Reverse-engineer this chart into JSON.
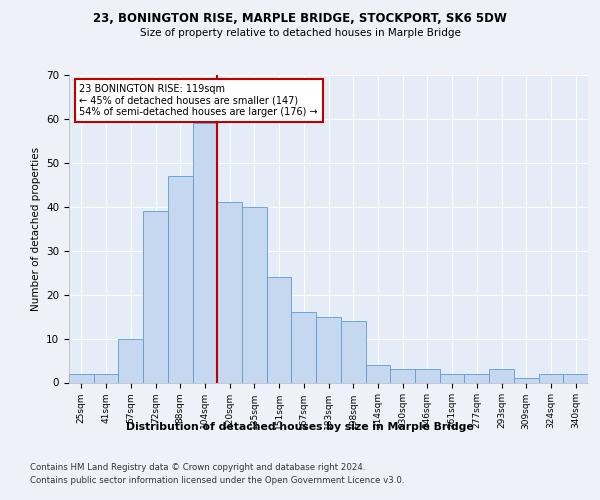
{
  "title_line1": "23, BONINGTON RISE, MARPLE BRIDGE, STOCKPORT, SK6 5DW",
  "title_line2": "Size of property relative to detached houses in Marple Bridge",
  "xlabel": "Distribution of detached houses by size in Marple Bridge",
  "ylabel": "Number of detached properties",
  "categories": [
    "25sqm",
    "41sqm",
    "57sqm",
    "72sqm",
    "88sqm",
    "104sqm",
    "120sqm",
    "135sqm",
    "151sqm",
    "167sqm",
    "183sqm",
    "198sqm",
    "214sqm",
    "230sqm",
    "246sqm",
    "261sqm",
    "277sqm",
    "293sqm",
    "309sqm",
    "324sqm",
    "340sqm"
  ],
  "values": [
    2,
    2,
    10,
    39,
    47,
    59,
    41,
    40,
    24,
    16,
    15,
    14,
    4,
    3,
    3,
    2,
    2,
    3,
    1,
    2,
    2
  ],
  "bar_color": "#c5d8f0",
  "bar_edge_color": "#5b9bd5",
  "vline_x_index": 6,
  "vline_color": "#c00000",
  "annotation_text": "23 BONINGTON RISE: 119sqm\n← 45% of detached houses are smaller (147)\n54% of semi-detached houses are larger (176) →",
  "annotation_box_color": "#c00000",
  "ylim": [
    0,
    70
  ],
  "yticks": [
    0,
    10,
    20,
    30,
    40,
    50,
    60,
    70
  ],
  "footer_line1": "Contains HM Land Registry data © Crown copyright and database right 2024.",
  "footer_line2": "Contains public sector information licensed under the Open Government Licence v3.0.",
  "bg_color": "#eef2f8",
  "plot_bg_color": "#e4ecf7"
}
